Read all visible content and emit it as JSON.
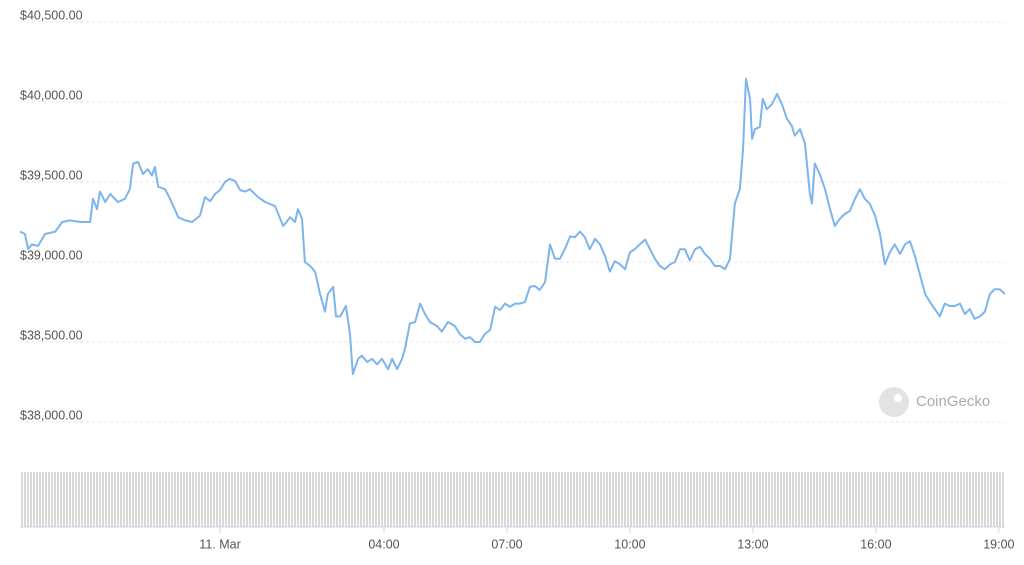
{
  "chart_data": {
    "type": "line",
    "x": [
      -4.88,
      -4.76,
      -4.68,
      -4.59,
      -4.44,
      -4.27,
      -4.02,
      -3.85,
      -3.66,
      -3.41,
      -3.17,
      -3.1,
      -3.0,
      -2.93,
      -2.8,
      -2.68,
      -2.49,
      -2.32,
      -2.2,
      -2.12,
      -2.0,
      -1.88,
      -1.76,
      -1.66,
      -1.59,
      -1.51,
      -1.34,
      -1.22,
      -1.02,
      -0.85,
      -0.68,
      -0.49,
      -0.37,
      -0.24,
      -0.12,
      0,
      0.12,
      0.24,
      0.37,
      0.49,
      0.61,
      0.73,
      0.93,
      1.1,
      1.34,
      1.54,
      1.71,
      1.83,
      1.9,
      2.0,
      2.07,
      2.2,
      2.32,
      2.44,
      2.56,
      2.63,
      2.76,
      2.83,
      2.93,
      3.07,
      3.17,
      3.24,
      3.37,
      3.46,
      3.59,
      3.71,
      3.83,
      3.95,
      4.1,
      4.2,
      4.32,
      4.44,
      4.51,
      4.63,
      4.76,
      4.88,
      5.0,
      5.12,
      5.29,
      5.41,
      5.56,
      5.73,
      5.85,
      5.98,
      6.1,
      6.22,
      6.34,
      6.46,
      6.59,
      6.71,
      6.83,
      6.95,
      7.07,
      7.2,
      7.32,
      7.44,
      7.56,
      7.68,
      7.8,
      7.93,
      8.05,
      8.17,
      8.29,
      8.41,
      8.54,
      8.66,
      8.78,
      8.9,
      9.02,
      9.15,
      9.27,
      9.39,
      9.51,
      9.63,
      9.76,
      9.88,
      10.0,
      10.12,
      10.24,
      10.37,
      10.49,
      10.61,
      10.73,
      10.85,
      10.98,
      11.1,
      11.22,
      11.34,
      11.46,
      11.59,
      11.71,
      11.83,
      11.95,
      12.07,
      12.2,
      12.32,
      12.44,
      12.56,
      12.68,
      12.76,
      12.83,
      12.93,
      12.98,
      13.05,
      13.17,
      13.24,
      13.34,
      13.46,
      13.59,
      13.71,
      13.83,
      13.95,
      14.02,
      14.15,
      14.27,
      14.39,
      14.44,
      14.51,
      14.63,
      14.76,
      14.88,
      15.0,
      15.12,
      15.24,
      15.37,
      15.49,
      15.61,
      15.73,
      15.85,
      15.98,
      16.1,
      16.22,
      16.34,
      16.46,
      16.59,
      16.71,
      16.83,
      16.95,
      17.07,
      17.2,
      17.32,
      17.44,
      17.56,
      17.68,
      17.8,
      17.93,
      18.05,
      18.17,
      18.29,
      18.41,
      18.54,
      18.66,
      18.78,
      18.9,
      19.02,
      19.15
    ],
    "values": [
      39190,
      39175,
      39080,
      39110,
      39100,
      39175,
      39190,
      39250,
      39260,
      39250,
      39250,
      39395,
      39330,
      39440,
      39375,
      39425,
      39375,
      39395,
      39455,
      39615,
      39625,
      39550,
      39580,
      39540,
      39595,
      39470,
      39455,
      39395,
      39280,
      39260,
      39250,
      39290,
      39405,
      39380,
      39425,
      39450,
      39500,
      39520,
      39505,
      39450,
      39440,
      39455,
      39405,
      39375,
      39350,
      39225,
      39280,
      39250,
      39330,
      39270,
      39000,
      38975,
      38940,
      38800,
      38690,
      38800,
      38845,
      38660,
      38660,
      38725,
      38550,
      38300,
      38395,
      38415,
      38375,
      38395,
      38360,
      38395,
      38330,
      38395,
      38330,
      38395,
      38455,
      38615,
      38625,
      38740,
      38675,
      38625,
      38600,
      38565,
      38625,
      38600,
      38550,
      38520,
      38530,
      38500,
      38500,
      38550,
      38575,
      38720,
      38700,
      38740,
      38720,
      38740,
      38740,
      38750,
      38845,
      38850,
      38825,
      38875,
      39110,
      39020,
      39020,
      39080,
      39160,
      39155,
      39190,
      39155,
      39080,
      39145,
      39110,
      39040,
      38940,
      39005,
      38985,
      38955,
      39060,
      39080,
      39110,
      39140,
      39080,
      39020,
      38975,
      38955,
      38985,
      39000,
      39080,
      39080,
      39010,
      39080,
      39095,
      39050,
      39020,
      38975,
      38975,
      38955,
      39020,
      39365,
      39455,
      39705,
      40145,
      40020,
      39770,
      39830,
      39845,
      40020,
      39955,
      39985,
      40050,
      39985,
      39895,
      39850,
      39790,
      39830,
      39740,
      39425,
      39365,
      39615,
      39550,
      39455,
      39330,
      39225,
      39270,
      39300,
      39320,
      39395,
      39455,
      39395,
      39365,
      39290,
      39175,
      38985,
      39060,
      39110,
      39050,
      39110,
      39130,
      39040,
      38925,
      38800,
      38750,
      38705,
      38660,
      38740,
      38725,
      38725,
      38740,
      38675,
      38705,
      38645,
      38660,
      38690,
      38800,
      38830,
      38830,
      38800
    ],
    "color": "#7cb5ec",
    "xlim": [
      -4.88,
      19.15
    ],
    "xticks": [
      {
        "value": 0,
        "label": "11. Mar"
      },
      {
        "value": 4,
        "label": "04:00"
      },
      {
        "value": 7,
        "label": "07:00"
      },
      {
        "value": 10,
        "label": "10:00"
      },
      {
        "value": 13,
        "label": "13:00"
      },
      {
        "value": 16,
        "label": "16:00"
      },
      {
        "value": 19,
        "label": "19:00"
      }
    ],
    "ylim": [
      38000,
      40500
    ],
    "yticks": [
      {
        "value": 38000,
        "label": "$38,000.00"
      },
      {
        "value": 38500,
        "label": "$38,500.00"
      },
      {
        "value": 39000,
        "label": "$39,000.00"
      },
      {
        "value": 39500,
        "label": "$39,500.00"
      },
      {
        "value": 40000,
        "label": "$40,000.00"
      },
      {
        "value": 40500,
        "label": "$40,500.00"
      }
    ],
    "grid": true,
    "watermark": "CoinGecko"
  }
}
